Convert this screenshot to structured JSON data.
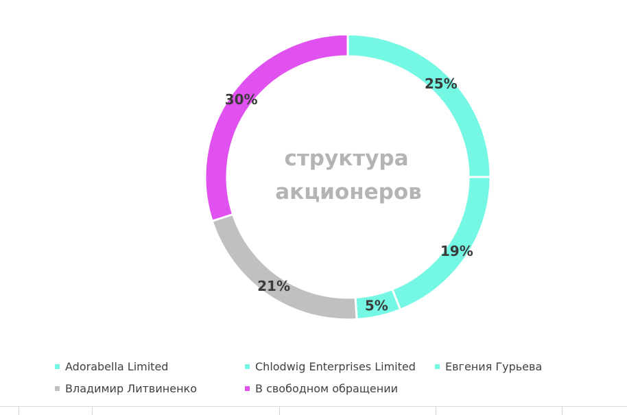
{
  "chart_data": {
    "type": "pie",
    "variant": "doughnut",
    "center_text": [
      "структура",
      "акционеров"
    ],
    "slices": [
      {
        "name": "Adorabella Limited",
        "value": 25,
        "label": "25%",
        "color": "#74f8e4"
      },
      {
        "name": "Chlodwig Enterprises Limited",
        "value": 19,
        "label": "19%",
        "color": "#74f8e4"
      },
      {
        "name": "Евгения Гурьева",
        "value": 5,
        "label": "5%",
        "color": "#74f8e4"
      },
      {
        "name": "Владимир Литвиненко",
        "value": 21,
        "label": "21%",
        "color": "#c0c0c0"
      },
      {
        "name": "В свободном обращении",
        "value": 30,
        "label": "30%",
        "color": "#e151ef"
      }
    ],
    "legend": {
      "placement": "bottom",
      "items": [
        {
          "label": "Adorabella Limited",
          "color": "#74f8e4"
        },
        {
          "label": "Chlodwig Enterprises Limited",
          "color": "#74f8e4"
        },
        {
          "label": "Евгения Гурьева",
          "color": "#74f8e4"
        },
        {
          "label": "Владимир Литвиненко",
          "color": "#c0c0c0"
        },
        {
          "label": "В свободном обращении",
          "color": "#e151ef"
        }
      ]
    }
  }
}
